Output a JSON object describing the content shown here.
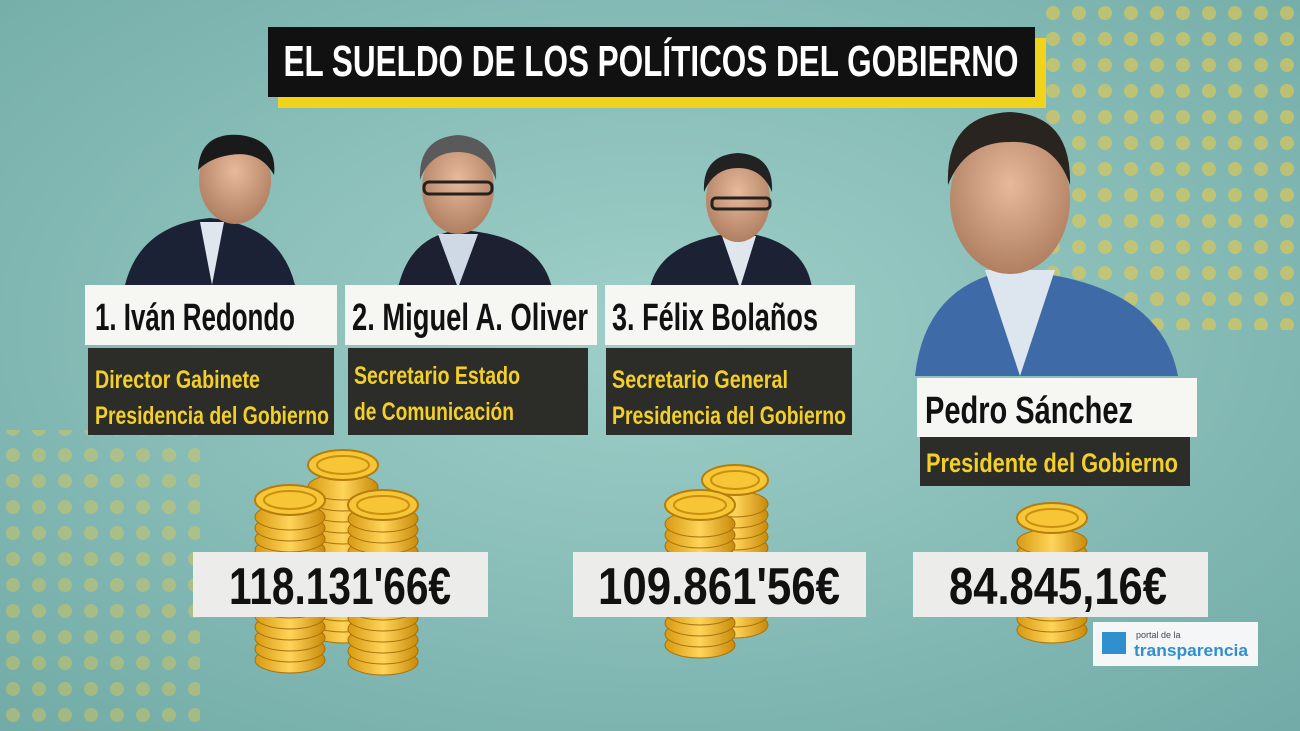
{
  "header": {
    "title": "EL SUELDO DE LOS POLÍTICOS DEL GOBIERNO"
  },
  "people": [
    {
      "name": "1. Iván Redondo",
      "role": [
        "Director Gabinete",
        "Presidencia del Gobierno"
      ]
    },
    {
      "name": "2. Miguel A. Oliver",
      "role": [
        "Secretario Estado",
        "de Comunicación"
      ]
    },
    {
      "name": "3. Félix Bolaños",
      "role": [
        "Secretario General",
        "Presidencia del Gobierno"
      ]
    },
    {
      "name": "Pedro Sánchez",
      "role": [
        "Presidente del Gobierno"
      ]
    }
  ],
  "amounts": [
    "118.131'66€",
    "109.861'56€",
    "84.845,16€"
  ],
  "logo": {
    "small": "portal de la",
    "brand": "transparencia"
  }
}
